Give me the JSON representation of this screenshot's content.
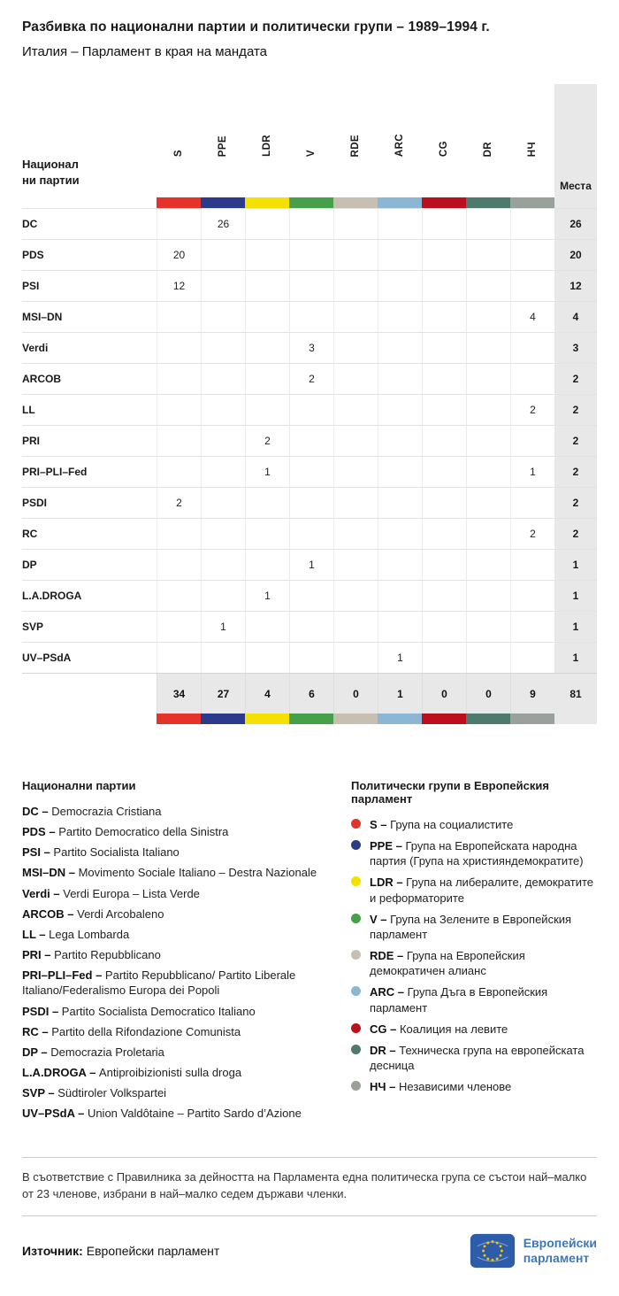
{
  "title": "Разбивка по национални партии и политически групи – 1989–1994 г.",
  "subtitle": "Италия – Парламент в края на мандата",
  "chart_data": {
    "type": "table",
    "row_header": "Национални партии",
    "value_header": "Места",
    "columns": [
      {
        "code": "S",
        "color": "#e63329"
      },
      {
        "code": "PPE",
        "color": "#2c3a8c"
      },
      {
        "code": "LDR",
        "color": "#f5e003"
      },
      {
        "code": "V",
        "color": "#45a049"
      },
      {
        "code": "RDE",
        "color": "#c7bfb2"
      },
      {
        "code": "ARC",
        "color": "#8cb7d4"
      },
      {
        "code": "CG",
        "color": "#bb0f1d"
      },
      {
        "code": "DR",
        "color": "#4e7a6e"
      },
      {
        "code": "НЧ",
        "color": "#9aa19b"
      }
    ],
    "rows": [
      {
        "party": "DC",
        "values": [
          "",
          "26",
          "",
          "",
          "",
          "",
          "",
          "",
          ""
        ],
        "seats": "26"
      },
      {
        "party": "PDS",
        "values": [
          "20",
          "",
          "",
          "",
          "",
          "",
          "",
          "",
          ""
        ],
        "seats": "20"
      },
      {
        "party": "PSI",
        "values": [
          "12",
          "",
          "",
          "",
          "",
          "",
          "",
          "",
          ""
        ],
        "seats": "12"
      },
      {
        "party": "MSI–DN",
        "values": [
          "",
          "",
          "",
          "",
          "",
          "",
          "",
          "",
          "4"
        ],
        "seats": "4"
      },
      {
        "party": "Verdi",
        "values": [
          "",
          "",
          "",
          "3",
          "",
          "",
          "",
          "",
          ""
        ],
        "seats": "3"
      },
      {
        "party": "ARCOB",
        "values": [
          "",
          "",
          "",
          "2",
          "",
          "",
          "",
          "",
          ""
        ],
        "seats": "2"
      },
      {
        "party": "LL",
        "values": [
          "",
          "",
          "",
          "",
          "",
          "",
          "",
          "",
          "2"
        ],
        "seats": "2"
      },
      {
        "party": "PRI",
        "values": [
          "",
          "",
          "2",
          "",
          "",
          "",
          "",
          "",
          ""
        ],
        "seats": "2"
      },
      {
        "party": "PRI–PLI–Fed",
        "values": [
          "",
          "",
          "1",
          "",
          "",
          "",
          "",
          "",
          "1"
        ],
        "seats": "2"
      },
      {
        "party": "PSDI",
        "values": [
          "2",
          "",
          "",
          "",
          "",
          "",
          "",
          "",
          ""
        ],
        "seats": "2"
      },
      {
        "party": "RC",
        "values": [
          "",
          "",
          "",
          "",
          "",
          "",
          "",
          "",
          "2"
        ],
        "seats": "2"
      },
      {
        "party": "DP",
        "values": [
          "",
          "",
          "",
          "1",
          "",
          "",
          "",
          "",
          ""
        ],
        "seats": "1"
      },
      {
        "party": "L.A.DROGA",
        "values": [
          "",
          "",
          "1",
          "",
          "",
          "",
          "",
          "",
          ""
        ],
        "seats": "1"
      },
      {
        "party": "SVP",
        "values": [
          "",
          "1",
          "",
          "",
          "",
          "",
          "",
          "",
          ""
        ],
        "seats": "1"
      },
      {
        "party": "UV–PSdA",
        "values": [
          "",
          "",
          "",
          "",
          "",
          "1",
          "",
          "",
          ""
        ],
        "seats": "1"
      }
    ],
    "totals": {
      "values": [
        "34",
        "27",
        "4",
        "6",
        "0",
        "1",
        "0",
        "0",
        "9"
      ],
      "seats": "81"
    }
  },
  "legend_parties": {
    "heading": "Национални  партии",
    "items": [
      {
        "code": "DC –",
        "name": "Democrazia Cristiana"
      },
      {
        "code": "PDS –",
        "name": "Partito Democratico della Sinistra"
      },
      {
        "code": "PSI –",
        "name": "Partito Socialista Italiano"
      },
      {
        "code": "MSI–DN –",
        "name": "Movimento Sociale Italiano – Destra Nazionale"
      },
      {
        "code": "Verdi –",
        "name": "Verdi Europa – Lista Verde"
      },
      {
        "code": "ARCOB –",
        "name": "Verdi Arcobaleno"
      },
      {
        "code": "LL –",
        "name": "Lega Lombarda"
      },
      {
        "code": "PRI –",
        "name": "Partito Repubblicano"
      },
      {
        "code": "PRI–PLI–Fed –",
        "name": "Partito Repubblicano/ Partito Liberale Italiano/Federalismo Europa dei Popoli"
      },
      {
        "code": "PSDI –",
        "name": "Partito Socialista Democratico Italiano"
      },
      {
        "code": "RC –",
        "name": "Partito della Rifondazione Comunista"
      },
      {
        "code": "DP –",
        "name": "Democrazia Proletaria"
      },
      {
        "code": "L.A.DROGA –",
        "name": "Antiproibizionisti sulla droga"
      },
      {
        "code": "SVP –",
        "name": "Südtiroler Volkspartei"
      },
      {
        "code": "UV–PSdA –",
        "name": "Union Valdôtaine – Partito Sardo d’Azione"
      }
    ]
  },
  "legend_groups": {
    "heading": "Политически групи в Европейския парламент",
    "items": [
      {
        "code": "S –",
        "name": "Група на социалистите",
        "color": "#e63329"
      },
      {
        "code": "PPE –",
        "name": "Група на Европейската народна партия (Група на християндемократите)",
        "color": "#2c3a8c"
      },
      {
        "code": "LDR –",
        "name": "Група на либералите, демократите и реформаторите",
        "color": "#f5e003"
      },
      {
        "code": "V –",
        "name": "Група на Зелените в Европейския парламент",
        "color": "#45a049"
      },
      {
        "code": "RDE –",
        "name": "Група на Европейския демократичен алианс",
        "color": "#c7bfb2"
      },
      {
        "code": "ARC –",
        "name": "Група Дъга в Европейския парламент",
        "color": "#8cb7d4"
      },
      {
        "code": "CG –",
        "name": "Коалиция на левите",
        "color": "#bb0f1d"
      },
      {
        "code": "DR –",
        "name": "Техническа група на европейската десница",
        "color": "#4e7a6e"
      },
      {
        "code": "НЧ –",
        "name": "Независими членове",
        "color": "#9aa19b"
      }
    ]
  },
  "note": "В съответствие с Правилника за дейността на Парламента една политическа група се състои най–малко от 23 членове, избрани в най–малко седем държави членки.",
  "source": {
    "label": "Източник:",
    "value": "Европейски парламент",
    "logo_line1": "Европейски",
    "logo_line2": "парламент"
  }
}
